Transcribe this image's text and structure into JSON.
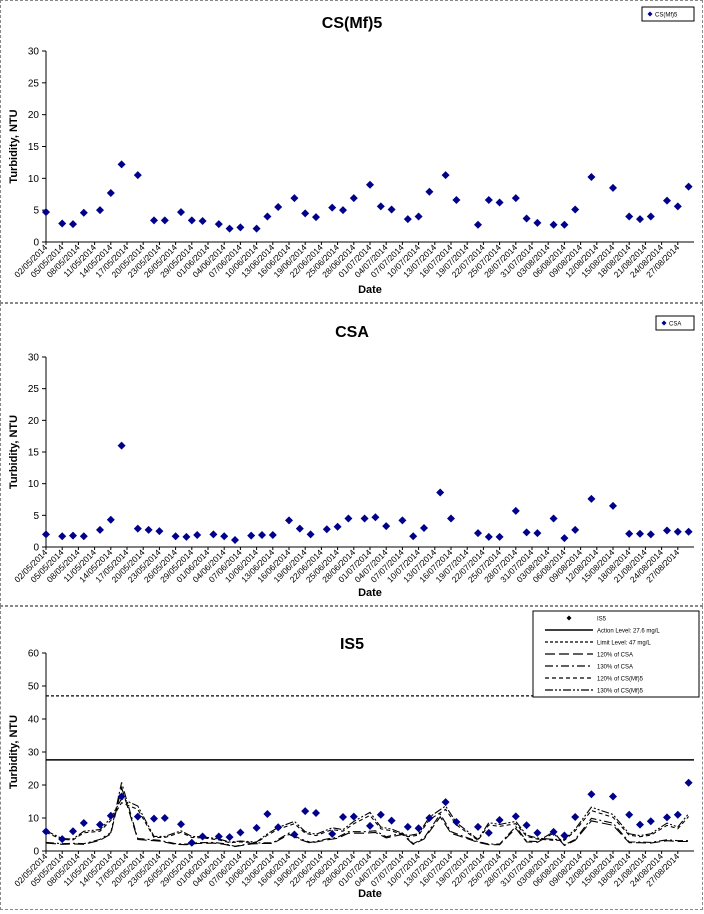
{
  "chart_data": [
    {
      "type": "scatter",
      "title": "CS(Mf)5",
      "xlabel": "Date",
      "ylabel": "Turbidity, NTU",
      "ylim": [
        0,
        30
      ],
      "yticks": [
        0,
        5,
        10,
        15,
        20,
        25,
        30
      ],
      "xlim": [
        "02/05/2014",
        "30/08/2014"
      ],
      "xtick_labels": [
        "02/05/2014",
        "05/05/2014",
        "08/05/2014",
        "11/05/2014",
        "14/05/2014",
        "17/05/2014",
        "20/05/2014",
        "23/05/2014",
        "26/05/2014",
        "29/05/2014",
        "01/06/2014",
        "04/06/2014",
        "07/06/2014",
        "10/06/2014",
        "13/06/2014",
        "16/06/2014",
        "19/06/2014",
        "22/06/2014",
        "25/06/2014",
        "28/06/2014",
        "01/07/2014",
        "04/07/2014",
        "07/07/2014",
        "10/07/2014",
        "13/07/2014",
        "16/07/2014",
        "19/07/2014",
        "22/07/2014",
        "25/07/2014",
        "28/07/2014",
        "31/07/2014",
        "03/08/2014",
        "06/08/2014",
        "09/08/2014",
        "12/08/2014",
        "15/08/2014",
        "18/08/2014",
        "21/08/2014",
        "24/08/2014",
        "27/08/2014"
      ],
      "legend": [
        "CS(Mf)5"
      ],
      "legend_position": "top-right",
      "series": [
        {
          "name": "CS(Mf)5",
          "marker": "diamond",
          "color": "#00008b",
          "x": [
            "02/05/2014",
            "05/05/2014",
            "07/05/2014",
            "09/05/2014",
            "12/05/2014",
            "14/05/2014",
            "16/05/2014",
            "19/05/2014",
            "22/05/2014",
            "24/05/2014",
            "27/05/2014",
            "29/05/2014",
            "31/05/2014",
            "03/06/2014",
            "05/06/2014",
            "07/06/2014",
            "10/06/2014",
            "12/06/2014",
            "14/06/2014",
            "17/06/2014",
            "19/06/2014",
            "21/06/2014",
            "24/06/2014",
            "26/06/2014",
            "28/06/2014",
            "01/07/2014",
            "03/07/2014",
            "05/07/2014",
            "08/07/2014",
            "10/07/2014",
            "12/07/2014",
            "15/07/2014",
            "17/07/2014",
            "21/07/2014",
            "23/07/2014",
            "25/07/2014",
            "28/07/2014",
            "30/07/2014",
            "01/08/2014",
            "04/08/2014",
            "06/08/2014",
            "08/08/2014",
            "11/08/2014",
            "15/08/2014",
            "18/08/2014",
            "20/08/2014",
            "22/08/2014",
            "25/08/2014",
            "27/08/2014",
            "29/08/2014"
          ],
          "y": [
            4.7,
            2.9,
            2.8,
            4.6,
            5.0,
            7.7,
            12.2,
            10.5,
            3.4,
            3.4,
            4.7,
            3.4,
            3.3,
            2.8,
            2.1,
            2.3,
            2.1,
            4.0,
            5.5,
            6.9,
            4.5,
            3.9,
            5.4,
            5.0,
            6.9,
            9.0,
            5.6,
            5.1,
            3.6,
            4.0,
            7.9,
            10.5,
            6.6,
            2.7,
            6.6,
            6.2,
            6.9,
            3.7,
            3.0,
            2.7,
            2.7,
            5.1,
            10.2,
            8.5,
            4.0,
            3.6,
            4.0,
            6.5,
            5.6,
            8.7
          ]
        }
      ]
    },
    {
      "type": "scatter",
      "title": "CSA",
      "xlabel": "Date",
      "ylabel": "Turbidity, NTU",
      "ylim": [
        0,
        30
      ],
      "yticks": [
        0,
        5,
        10,
        15,
        20,
        25,
        30
      ],
      "xlim": [
        "02/05/2014",
        "30/08/2014"
      ],
      "xtick_labels": [
        "02/05/2014",
        "05/05/2014",
        "08/05/2014",
        "11/05/2014",
        "14/05/2014",
        "17/05/2014",
        "20/05/2014",
        "23/05/2014",
        "26/05/2014",
        "29/05/2014",
        "01/06/2014",
        "04/06/2014",
        "07/06/2014",
        "10/06/2014",
        "13/06/2014",
        "16/06/2014",
        "19/06/2014",
        "22/06/2014",
        "25/06/2014",
        "28/06/2014",
        "01/07/2014",
        "04/07/2014",
        "07/07/2014",
        "10/07/2014",
        "13/07/2014",
        "16/07/2014",
        "19/07/2014",
        "22/07/2014",
        "25/07/2014",
        "28/07/2014",
        "31/07/2014",
        "03/08/2014",
        "06/08/2014",
        "09/08/2014",
        "12/08/2014",
        "15/08/2014",
        "18/08/2014",
        "21/08/2014",
        "24/08/2014",
        "27/08/2014"
      ],
      "legend": [
        "CSA"
      ],
      "legend_position": "top-right",
      "series": [
        {
          "name": "CSA",
          "marker": "diamond",
          "color": "#00008b",
          "x": [
            "02/05/2014",
            "05/05/2014",
            "07/05/2014",
            "09/05/2014",
            "12/05/2014",
            "14/05/2014",
            "16/05/2014",
            "19/05/2014",
            "21/05/2014",
            "23/05/2014",
            "26/05/2014",
            "28/05/2014",
            "30/05/2014",
            "02/06/2014",
            "04/06/2014",
            "06/06/2014",
            "09/06/2014",
            "11/06/2014",
            "13/06/2014",
            "16/06/2014",
            "18/06/2014",
            "20/06/2014",
            "23/06/2014",
            "25/06/2014",
            "27/06/2014",
            "30/06/2014",
            "02/07/2014",
            "04/07/2014",
            "07/07/2014",
            "09/07/2014",
            "11/07/2014",
            "14/07/2014",
            "16/07/2014",
            "21/07/2014",
            "23/07/2014",
            "25/07/2014",
            "28/07/2014",
            "30/07/2014",
            "01/08/2014",
            "04/08/2014",
            "06/08/2014",
            "08/08/2014",
            "11/08/2014",
            "15/08/2014",
            "18/08/2014",
            "20/08/2014",
            "22/08/2014",
            "25/08/2014",
            "27/08/2014",
            "29/08/2014"
          ],
          "y": [
            2.0,
            1.7,
            1.8,
            1.7,
            2.7,
            4.3,
            16.0,
            2.9,
            2.7,
            2.5,
            1.7,
            1.6,
            1.9,
            2.0,
            1.7,
            1.1,
            1.8,
            1.9,
            1.9,
            4.2,
            2.9,
            2.0,
            2.8,
            3.2,
            4.5,
            4.5,
            4.7,
            3.3,
            4.2,
            1.7,
            3.0,
            8.6,
            4.5,
            2.2,
            1.6,
            1.6,
            5.7,
            2.3,
            2.2,
            4.5,
            1.4,
            2.7,
            7.6,
            6.5,
            2.1,
            2.1,
            2.0,
            2.6,
            2.4,
            2.4
          ]
        }
      ]
    },
    {
      "type": "line",
      "title": "IS5",
      "xlabel": "Date",
      "ylabel": "Turbidity, NTU",
      "ylim": [
        0,
        60
      ],
      "yticks": [
        0,
        10,
        20,
        30,
        40,
        50,
        60
      ],
      "xlim": [
        "02/05/2014",
        "30/08/2014"
      ],
      "xtick_labels": [
        "02/05/2014",
        "05/05/2014",
        "08/05/2014",
        "11/05/2014",
        "14/05/2014",
        "17/05/2014",
        "20/05/2014",
        "23/05/2014",
        "26/05/2014",
        "29/05/2014",
        "01/06/2014",
        "04/06/2014",
        "07/06/2014",
        "10/06/2014",
        "13/06/2014",
        "16/06/2014",
        "19/06/2014",
        "22/06/2014",
        "25/06/2014",
        "28/06/2014",
        "01/07/2014",
        "04/07/2014",
        "07/07/2014",
        "10/07/2014",
        "13/07/2014",
        "16/07/2014",
        "19/07/2014",
        "22/07/2014",
        "25/07/2014",
        "28/07/2014",
        "31/07/2014",
        "03/08/2014",
        "06/08/2014",
        "09/08/2014",
        "12/08/2014",
        "15/08/2014",
        "18/08/2014",
        "21/08/2014",
        "24/08/2014",
        "27/08/2014"
      ],
      "legend": [
        "IS5",
        "Action Level: 27.6 mg/L",
        "Limit Level: 47 mg/L",
        "120% of CSA",
        "130% of CSA",
        "120% of CS(Mf)5",
        "130% of CS(Mf)5"
      ],
      "legend_position": "top-right",
      "action_level": 27.6,
      "limit_level": 47,
      "series": [
        {
          "name": "IS5",
          "marker": "diamond",
          "color": "#00008b",
          "x": [
            "02/05/2014",
            "05/05/2014",
            "07/05/2014",
            "09/05/2014",
            "12/05/2014",
            "14/05/2014",
            "16/05/2014",
            "19/05/2014",
            "22/05/2014",
            "24/05/2014",
            "27/05/2014",
            "29/05/2014",
            "31/05/2014",
            "03/06/2014",
            "05/06/2014",
            "07/06/2014",
            "10/06/2014",
            "12/06/2014",
            "14/06/2014",
            "17/06/2014",
            "19/06/2014",
            "21/06/2014",
            "24/06/2014",
            "26/06/2014",
            "28/06/2014",
            "01/07/2014",
            "03/07/2014",
            "05/07/2014",
            "08/07/2014",
            "10/07/2014",
            "12/07/2014",
            "15/07/2014",
            "17/07/2014",
            "21/07/2014",
            "23/07/2014",
            "25/07/2014",
            "28/07/2014",
            "30/07/2014",
            "01/08/2014",
            "04/08/2014",
            "06/08/2014",
            "08/08/2014",
            "11/08/2014",
            "15/08/2014",
            "18/08/2014",
            "20/08/2014",
            "22/08/2014",
            "25/08/2014",
            "27/08/2014",
            "29/08/2014"
          ],
          "y": [
            5.9,
            3.6,
            6.0,
            8.5,
            8.0,
            10.7,
            16.5,
            10.4,
            9.8,
            10.0,
            8.1,
            2.5,
            4.4,
            4.4,
            4.2,
            5.6,
            7.0,
            11.2,
            7.2,
            5.0,
            12.1,
            11.5,
            5.2,
            10.3,
            10.4,
            7.6,
            11.0,
            9.2,
            7.3,
            6.9,
            10.0,
            14.8,
            8.8,
            7.3,
            5.5,
            9.4,
            10.5,
            7.8,
            5.5,
            5.8,
            4.7,
            10.3,
            17.2,
            16.5,
            11.0,
            8.0,
            9.0,
            10.2,
            11.0,
            20.7
          ]
        },
        {
          "name": "120% of CSA",
          "style": "long-dash",
          "color": "#000000",
          "ref": "CSA",
          "factor": 1.2
        },
        {
          "name": "130% of CSA",
          "style": "dash-dot",
          "color": "#000000",
          "ref": "CSA",
          "factor": 1.3
        },
        {
          "name": "120% of CS(Mf)5",
          "style": "short-dash",
          "color": "#000000",
          "ref": "CS(Mf)5",
          "factor": 1.2
        },
        {
          "name": "130% of CS(Mf)5",
          "style": "dash-dot-dot",
          "color": "#000000",
          "ref": "CS(Mf)5",
          "factor": 1.3
        }
      ]
    }
  ]
}
